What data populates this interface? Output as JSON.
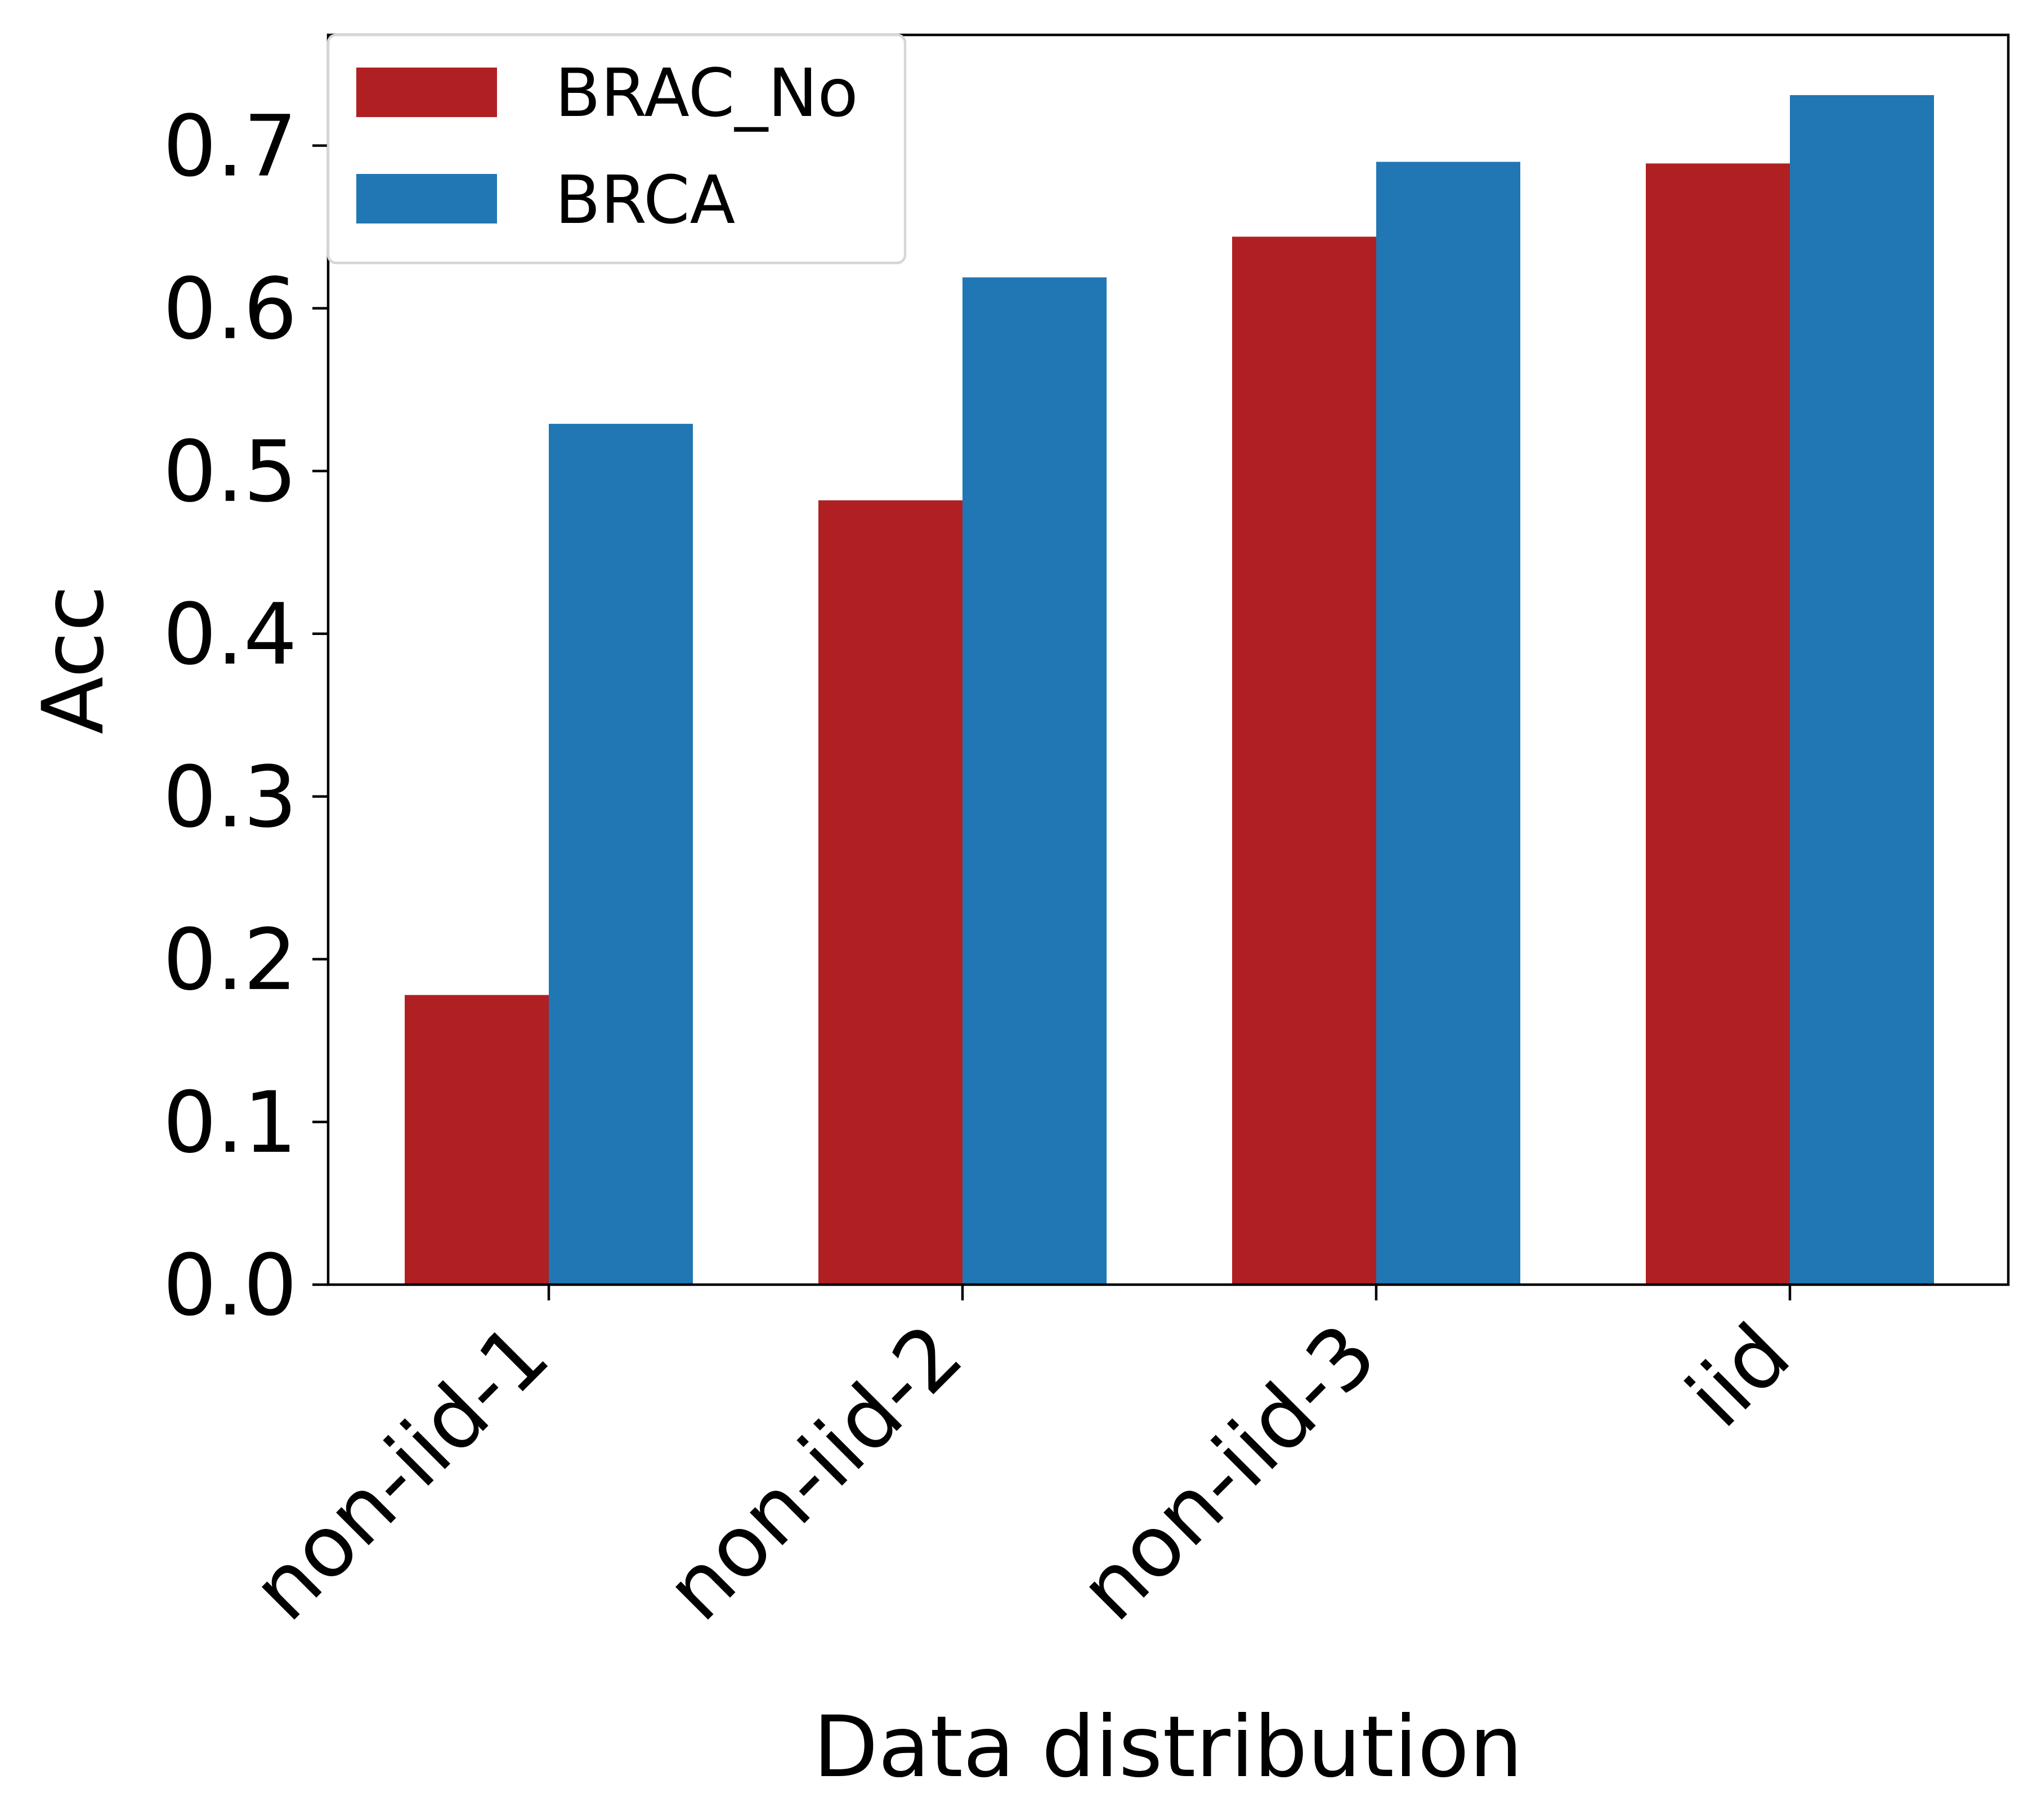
{
  "chart_data": {
    "type": "bar",
    "title": "",
    "xlabel": "Data distribution",
    "ylabel": "Acc",
    "categories": [
      "non-iid-1",
      "non-iid-2",
      "non-iid-3",
      "iid"
    ],
    "series": [
      {
        "name": "BRAC_No",
        "color": "#b02023",
        "values": [
          0.178,
          0.482,
          0.644,
          0.689
        ]
      },
      {
        "name": "BRCA",
        "color": "#2077b4",
        "values": [
          0.529,
          0.619,
          0.69,
          0.731
        ]
      }
    ],
    "ylim": [
      0,
      0.768
    ],
    "yticks": [
      0.0,
      0.1,
      0.2,
      0.3,
      0.4,
      0.5,
      0.6,
      0.7
    ],
    "ytick_labels": [
      "0.0",
      "0.1",
      "0.2",
      "0.3",
      "0.4",
      "0.5",
      "0.6",
      "0.7"
    ],
    "grid": false,
    "legend_position": "top-left"
  }
}
